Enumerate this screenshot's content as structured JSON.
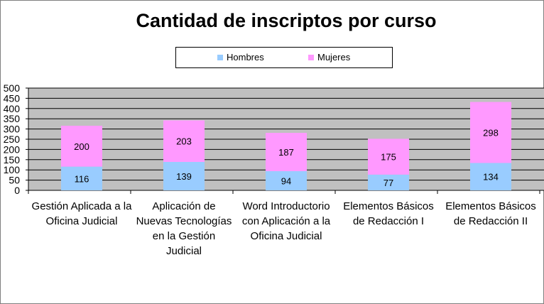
{
  "chart_data": {
    "type": "bar",
    "stacked": true,
    "title": "Cantidad de inscriptos por curso",
    "categories": [
      "Gestión Aplicada a la Oficina Judicial",
      "Aplicación de Nuevas Tecnologías en la Gestión Judicial",
      "Word Introductorio con Aplicación a la Oficina Judicial",
      "Elementos Básicos de Redacción I",
      "Elementos Básicos de Redacción II"
    ],
    "series": [
      {
        "name": "Hombres",
        "values": [
          116,
          139,
          94,
          77,
          134
        ],
        "color": "#99ccff"
      },
      {
        "name": "Mujeres",
        "values": [
          200,
          203,
          187,
          175,
          298
        ],
        "color": "#ff99ff"
      }
    ],
    "xlabel": "",
    "ylabel": "",
    "ylim": [
      0,
      500
    ],
    "yticks": [
      0,
      50,
      100,
      150,
      200,
      250,
      300,
      350,
      400,
      450,
      500
    ],
    "grid": true,
    "legend_position": "top",
    "plot_background": "#c0c0c0"
  }
}
